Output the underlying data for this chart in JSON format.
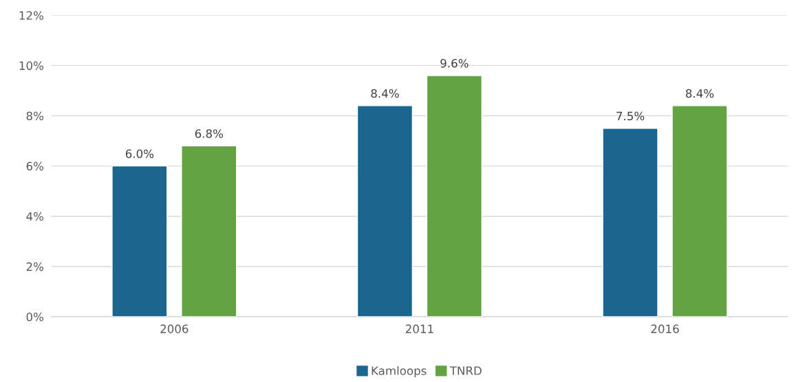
{
  "chart_data": {
    "type": "bar",
    "categories": [
      "2006",
      "2011",
      "2016"
    ],
    "series": [
      {
        "name": "Kamloops",
        "color": "#1a668f",
        "values": [
          6.0,
          8.4,
          7.5
        ],
        "value_labels": [
          "6.0%",
          "8.4%",
          "7.5%"
        ]
      },
      {
        "name": "TNRD",
        "color": "#63a343",
        "values": [
          6.8,
          9.6,
          8.4
        ],
        "value_labels": [
          "6.8%",
          "9.6%",
          "8.4%"
        ]
      }
    ],
    "ylim": [
      0,
      12
    ],
    "yticks": [
      {
        "value": 0,
        "label": "0%"
      },
      {
        "value": 2,
        "label": "2%"
      },
      {
        "value": 4,
        "label": "4%"
      },
      {
        "value": 6,
        "label": "6%"
      },
      {
        "value": 8,
        "label": "8%"
      },
      {
        "value": 10,
        "label": "10%"
      },
      {
        "value": 12,
        "label": "12%"
      }
    ],
    "grid": "y",
    "legend": "bottom"
  }
}
